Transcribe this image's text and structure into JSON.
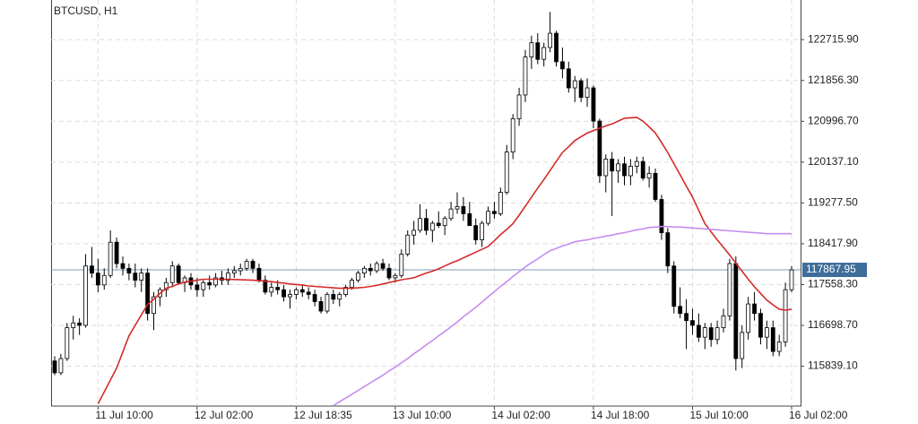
{
  "chart_data": {
    "type": "candlestick",
    "title": "BTCUSD, H1",
    "categories": [
      null,
      null,
      null,
      null,
      null,
      null,
      null,
      "11 Jul 10:00",
      null,
      null,
      null,
      null,
      null,
      null,
      null,
      null,
      null,
      null,
      null,
      null,
      null,
      null,
      null,
      "12 Jul 02:00",
      null,
      null,
      null,
      null,
      null,
      null,
      null,
      null,
      null,
      null,
      null,
      null,
      null,
      null,
      null,
      "12 Jul 18:35",
      null,
      null,
      null,
      null,
      null,
      null,
      null,
      null,
      null,
      null,
      null,
      null,
      null,
      null,
      null,
      "13 Jul 10:00",
      null,
      null,
      null,
      null,
      null,
      null,
      null,
      null,
      null,
      null,
      null,
      null,
      null,
      null,
      null,
      "14 Jul 02:00",
      null,
      null,
      null,
      null,
      null,
      null,
      null,
      null,
      null,
      null,
      null,
      null,
      null,
      null,
      null,
      "14 Jul 18:00",
      null,
      null,
      null,
      null,
      null,
      null,
      null,
      null,
      null,
      null,
      null,
      null,
      null,
      null,
      null,
      "15 Jul 10:00",
      null,
      null,
      null,
      null,
      null,
      null,
      null,
      null,
      null,
      null,
      null,
      null,
      null,
      null,
      null,
      "16 Jul 02:00"
    ],
    "open": [
      115950,
      115700,
      116000,
      116650,
      116750,
      116700,
      117950,
      117800,
      117550,
      117750,
      118450,
      118000,
      117900,
      117800,
      117650,
      117800,
      116950,
      117300,
      117450,
      117600,
      117950,
      117600,
      117700,
      117550,
      117450,
      117600,
      117550,
      117700,
      117650,
      117800,
      117850,
      117900,
      118050,
      117900,
      117650,
      117400,
      117500,
      117450,
      117300,
      117350,
      117450,
      117400,
      117350,
      117200,
      117000,
      117350,
      117250,
      117350,
      117500,
      117650,
      117800,
      117900,
      117850,
      118000,
      117900,
      117700,
      117750,
      118200,
      118600,
      118700,
      118950,
      118700,
      118850,
      118800,
      118950,
      119150,
      119200,
      119050,
      118800,
      118500,
      118850,
      119100,
      119050,
      119500,
      120350,
      121050,
      121550,
      122350,
      122650,
      122300,
      122550,
      122850,
      122250,
      122100,
      121700,
      121850,
      121500,
      121700,
      121000,
      119850,
      120200,
      119950,
      120100,
      119850,
      120050,
      120150,
      119800,
      119900,
      119350,
      118650,
      117950,
      117100,
      116950,
      116800,
      116700,
      116450,
      116650,
      116400,
      116650,
      116900,
      118000,
      116000,
      116550,
      117150,
      116950,
      116450,
      116650,
      116150,
      116350,
      117450
    ],
    "high": [
      116050,
      116100,
      116750,
      116900,
      116850,
      118200,
      118350,
      118100,
      117900,
      118700,
      118550,
      118150,
      118000,
      118000,
      117900,
      117900,
      117400,
      117500,
      117700,
      118050,
      118000,
      117750,
      117800,
      117700,
      117650,
      117750,
      117800,
      117850,
      117900,
      117950,
      118000,
      118100,
      118100,
      118000,
      117750,
      117600,
      117650,
      117550,
      117450,
      117500,
      117550,
      117500,
      117450,
      117300,
      117400,
      117450,
      117400,
      117550,
      117700,
      117850,
      117950,
      118000,
      118050,
      118100,
      118000,
      117800,
      118300,
      118700,
      118900,
      119250,
      119150,
      118900,
      119100,
      119000,
      119300,
      119500,
      119400,
      119300,
      118950,
      118900,
      119200,
      119300,
      119600,
      120500,
      121150,
      121700,
      122500,
      122800,
      122850,
      122650,
      123300,
      122900,
      122550,
      122250,
      121950,
      121900,
      121900,
      121750,
      121050,
      120300,
      120350,
      120200,
      120250,
      120200,
      120250,
      120250,
      120050,
      120000,
      119450,
      118750,
      118050,
      117500,
      117250,
      117050,
      116950,
      116750,
      116750,
      116800,
      117050,
      118100,
      118150,
      116700,
      117300,
      117400,
      117050,
      116800,
      116800,
      116500,
      117600,
      117950
    ],
    "low": [
      115650,
      115650,
      115950,
      116400,
      116500,
      116650,
      117700,
      117400,
      117450,
      117700,
      117900,
      117750,
      117650,
      117500,
      117400,
      116800,
      116600,
      117100,
      117300,
      117500,
      117550,
      117400,
      117450,
      117300,
      117300,
      117450,
      117500,
      117550,
      117550,
      117700,
      117750,
      117850,
      117800,
      117600,
      117350,
      117300,
      117350,
      117200,
      117050,
      117250,
      117300,
      117250,
      117100,
      116950,
      116950,
      117150,
      117100,
      117300,
      117450,
      117600,
      117700,
      117750,
      117800,
      117850,
      117650,
      117600,
      117700,
      118150,
      118400,
      118650,
      118600,
      118450,
      118750,
      118600,
      118900,
      119050,
      118900,
      118800,
      118400,
      118350,
      118800,
      118950,
      119000,
      119450,
      120200,
      120900,
      121400,
      122100,
      122200,
      122150,
      122450,
      122150,
      121900,
      121600,
      121400,
      121400,
      121300,
      120850,
      119700,
      119500,
      119000,
      119700,
      119650,
      119650,
      119900,
      119750,
      119600,
      119300,
      118500,
      117800,
      116950,
      116850,
      116200,
      116500,
      116350,
      116200,
      116250,
      116300,
      116550,
      116800,
      115750,
      115800,
      116400,
      116800,
      116300,
      116200,
      116050,
      116050,
      116250,
      117400
    ],
    "close": [
      115700,
      116000,
      116650,
      116750,
      116700,
      117950,
      117800,
      117550,
      117750,
      118450,
      118000,
      117900,
      117800,
      117650,
      117800,
      116950,
      117300,
      117450,
      117600,
      117950,
      117600,
      117700,
      117550,
      117450,
      117600,
      117550,
      117700,
      117650,
      117800,
      117850,
      117900,
      118050,
      117900,
      117650,
      117400,
      117500,
      117450,
      117300,
      117350,
      117450,
      117400,
      117350,
      117200,
      117000,
      117350,
      117250,
      117350,
      117500,
      117650,
      117800,
      117900,
      117850,
      118000,
      117900,
      117700,
      117750,
      118200,
      118600,
      118700,
      118950,
      118700,
      118850,
      118800,
      118950,
      119150,
      119200,
      119050,
      118800,
      118500,
      118850,
      119100,
      119050,
      119500,
      120350,
      121050,
      121550,
      122350,
      122650,
      122300,
      122550,
      122850,
      122250,
      122100,
      121700,
      121850,
      121500,
      121700,
      121000,
      119850,
      120200,
      119950,
      120100,
      119850,
      120050,
      120150,
      119800,
      119900,
      119350,
      118650,
      117950,
      117100,
      116950,
      116800,
      116700,
      116450,
      116650,
      116400,
      116650,
      116900,
      118000,
      116000,
      116550,
      117150,
      116950,
      116450,
      116650,
      116150,
      116350,
      117450,
      117868
    ],
    "overlays": [
      {
        "color": "#d42a2a",
        "values": [
          null,
          null,
          null,
          null,
          null,
          null,
          null,
          115050,
          115300,
          115550,
          115800,
          116140,
          116480,
          116700,
          116920,
          117140,
          117250,
          117370,
          117480,
          117520,
          117570,
          117610,
          117630,
          117650,
          117670,
          117670,
          117670,
          117670,
          117670,
          117665,
          117660,
          117655,
          117650,
          117640,
          117630,
          117620,
          117600,
          117590,
          117570,
          117560,
          117550,
          117530,
          117520,
          117510,
          117500,
          117490,
          117480,
          117480,
          117480,
          117490,
          117500,
          117520,
          117540,
          117570,
          117600,
          117630,
          117660,
          117680,
          117700,
          117750,
          117800,
          117840,
          117890,
          117950,
          118010,
          118060,
          118120,
          118180,
          118240,
          118300,
          118360,
          118480,
          118610,
          118720,
          118840,
          119020,
          119210,
          119400,
          119590,
          119770,
          119960,
          120150,
          120340,
          120460,
          120590,
          120670,
          120750,
          120800,
          120850,
          120900,
          120940,
          121000,
          121060,
          121070,
          121080,
          121000,
          120880,
          120750,
          120550,
          120340,
          120100,
          119870,
          119630,
          119400,
          119120,
          118840,
          118670,
          118500,
          118340,
          118180,
          118010,
          117840,
          117670,
          117510,
          117370,
          117230,
          117130,
          117040,
          117020,
          117040
        ]
      },
      {
        "color": "#c58cf0",
        "values": [
          null,
          null,
          null,
          null,
          null,
          null,
          null,
          null,
          null,
          null,
          null,
          null,
          null,
          null,
          null,
          null,
          null,
          null,
          null,
          null,
          null,
          null,
          null,
          null,
          null,
          null,
          null,
          null,
          null,
          null,
          null,
          null,
          null,
          null,
          null,
          null,
          null,
          null,
          null,
          null,
          null,
          null,
          null,
          null,
          null,
          115010,
          115090,
          115170,
          115250,
          115330,
          115410,
          115490,
          115570,
          115650,
          115740,
          115820,
          115910,
          116000,
          116100,
          116190,
          116290,
          116380,
          116480,
          116570,
          116670,
          116770,
          116880,
          116980,
          117080,
          117190,
          117300,
          117410,
          117520,
          117620,
          117730,
          117830,
          117930,
          118020,
          118100,
          118190,
          118270,
          118320,
          118370,
          118410,
          118460,
          118480,
          118500,
          118530,
          118550,
          118580,
          118600,
          118630,
          118650,
          118680,
          118710,
          118730,
          118760,
          118770,
          118780,
          118780,
          118770,
          118770,
          118760,
          118750,
          118740,
          118730,
          118720,
          118710,
          118700,
          118690,
          118680,
          118670,
          118660,
          118650,
          118640,
          118630,
          118630,
          118630,
          118630,
          118630
        ]
      }
    ],
    "last_price": 117867.95,
    "ylim": [
      115000,
      123550
    ],
    "yticks": [
      {
        "value": 122715.9,
        "label": "122715.90"
      },
      {
        "value": 121856.3,
        "label": "121856.30"
      },
      {
        "value": 120996.7,
        "label": "120996.70"
      },
      {
        "value": 120137.1,
        "label": "120137.10"
      },
      {
        "value": 119277.5,
        "label": "119277.50"
      },
      {
        "value": 118417.9,
        "label": "118417.90"
      },
      {
        "value": 117558.3,
        "label": "117558.30"
      },
      {
        "value": 116698.7,
        "label": "116698.70"
      },
      {
        "value": 115839.1,
        "label": "115839.10"
      }
    ],
    "grid": true
  }
}
